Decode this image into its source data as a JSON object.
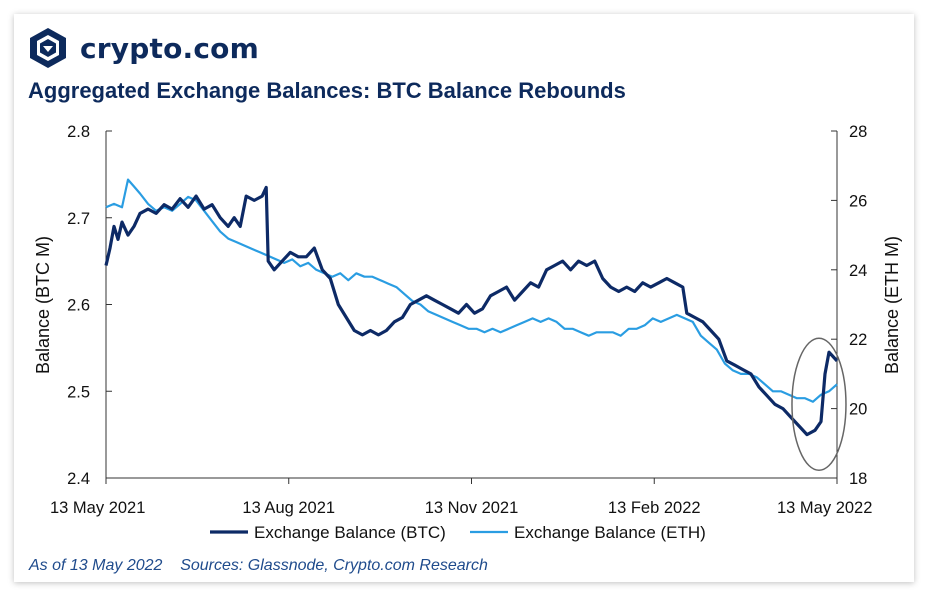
{
  "brand": {
    "name": "crypto.com",
    "logo_icon": "lion-shield-icon"
  },
  "footer": {
    "as_of": "As of 13 May 2022",
    "sources": "Sources: Glassnode, Crypto.com Research"
  },
  "colors": {
    "btc": "#0d2a66",
    "eth": "#2a9de2",
    "title": "#0d2a5c",
    "highlight": "#666666"
  },
  "chart_data": {
    "type": "line",
    "title": "Aggregated Exchange Balances: BTC Balance Rebounds",
    "xlabel": "",
    "ylabel": "Balance (BTC M)",
    "y2label": "Balance (ETH M)",
    "x_range": [
      "2021-05-13",
      "2022-05-13"
    ],
    "x_ticks": [
      "13 May 2021",
      "13 Aug 2021",
      "13 Nov 2021",
      "13 Feb 2022",
      "13 May 2022"
    ],
    "ylim": [
      2.4,
      2.8
    ],
    "y_ticks": [
      "2.4",
      "2.5",
      "2.6",
      "2.7",
      "2.8"
    ],
    "y2lim": [
      18,
      28
    ],
    "y2_ticks": [
      "18",
      "20",
      "22",
      "24",
      "26",
      "28"
    ],
    "grid": false,
    "legend": "bottom",
    "series": [
      {
        "name": "Exchange Balance (BTC)",
        "axis": "left",
        "points": [
          [
            "2021-05-13",
            2.645
          ],
          [
            "2021-05-15",
            2.665
          ],
          [
            "2021-05-17",
            2.69
          ],
          [
            "2021-05-19",
            2.675
          ],
          [
            "2021-05-21",
            2.695
          ],
          [
            "2021-05-24",
            2.68
          ],
          [
            "2021-05-27",
            2.69
          ],
          [
            "2021-05-30",
            2.705
          ],
          [
            "2021-06-03",
            2.71
          ],
          [
            "2021-06-07",
            2.705
          ],
          [
            "2021-06-11",
            2.715
          ],
          [
            "2021-06-15",
            2.71
          ],
          [
            "2021-06-19",
            2.722
          ],
          [
            "2021-06-23",
            2.712
          ],
          [
            "2021-06-27",
            2.725
          ],
          [
            "2021-07-01",
            2.71
          ],
          [
            "2021-07-05",
            2.715
          ],
          [
            "2021-07-09",
            2.7
          ],
          [
            "2021-07-13",
            2.69
          ],
          [
            "2021-07-16",
            2.7
          ],
          [
            "2021-07-19",
            2.69
          ],
          [
            "2021-07-22",
            2.725
          ],
          [
            "2021-07-26",
            2.72
          ],
          [
            "2021-07-30",
            2.725
          ],
          [
            "2021-08-01",
            2.735
          ],
          [
            "2021-08-02",
            2.65
          ],
          [
            "2021-08-05",
            2.64
          ],
          [
            "2021-08-09",
            2.65
          ],
          [
            "2021-08-13",
            2.66
          ],
          [
            "2021-08-17",
            2.655
          ],
          [
            "2021-08-21",
            2.655
          ],
          [
            "2021-08-25",
            2.665
          ],
          [
            "2021-08-29",
            2.64
          ],
          [
            "2021-09-02",
            2.63
          ],
          [
            "2021-09-06",
            2.6
          ],
          [
            "2021-09-10",
            2.585
          ],
          [
            "2021-09-14",
            2.57
          ],
          [
            "2021-09-18",
            2.565
          ],
          [
            "2021-09-22",
            2.57
          ],
          [
            "2021-09-26",
            2.565
          ],
          [
            "2021-09-30",
            2.57
          ],
          [
            "2021-10-04",
            2.58
          ],
          [
            "2021-10-08",
            2.585
          ],
          [
            "2021-10-12",
            2.6
          ],
          [
            "2021-10-16",
            2.605
          ],
          [
            "2021-10-20",
            2.61
          ],
          [
            "2021-10-24",
            2.605
          ],
          [
            "2021-10-28",
            2.6
          ],
          [
            "2021-11-01",
            2.595
          ],
          [
            "2021-11-05",
            2.59
          ],
          [
            "2021-11-09",
            2.6
          ],
          [
            "2021-11-13",
            2.59
          ],
          [
            "2021-11-17",
            2.595
          ],
          [
            "2021-11-21",
            2.61
          ],
          [
            "2021-11-25",
            2.615
          ],
          [
            "2021-11-29",
            2.62
          ],
          [
            "2021-12-03",
            2.605
          ],
          [
            "2021-12-07",
            2.615
          ],
          [
            "2021-12-11",
            2.625
          ],
          [
            "2021-12-15",
            2.62
          ],
          [
            "2021-12-19",
            2.64
          ],
          [
            "2021-12-23",
            2.645
          ],
          [
            "2021-12-27",
            2.65
          ],
          [
            "2021-12-31",
            2.64
          ],
          [
            "2022-01-04",
            2.65
          ],
          [
            "2022-01-08",
            2.645
          ],
          [
            "2022-01-12",
            2.65
          ],
          [
            "2022-01-16",
            2.63
          ],
          [
            "2022-01-20",
            2.62
          ],
          [
            "2022-01-24",
            2.615
          ],
          [
            "2022-01-28",
            2.62
          ],
          [
            "2022-02-01",
            2.615
          ],
          [
            "2022-02-05",
            2.625
          ],
          [
            "2022-02-09",
            2.62
          ],
          [
            "2022-02-13",
            2.625
          ],
          [
            "2022-02-17",
            2.63
          ],
          [
            "2022-02-21",
            2.625
          ],
          [
            "2022-02-25",
            2.62
          ],
          [
            "2022-02-27",
            2.59
          ],
          [
            "2022-03-03",
            2.585
          ],
          [
            "2022-03-07",
            2.58
          ],
          [
            "2022-03-11",
            2.57
          ],
          [
            "2022-03-15",
            2.56
          ],
          [
            "2022-03-19",
            2.535
          ],
          [
            "2022-03-23",
            2.53
          ],
          [
            "2022-03-27",
            2.525
          ],
          [
            "2022-03-31",
            2.52
          ],
          [
            "2022-04-04",
            2.505
          ],
          [
            "2022-04-08",
            2.495
          ],
          [
            "2022-04-12",
            2.485
          ],
          [
            "2022-04-16",
            2.48
          ],
          [
            "2022-04-20",
            2.47
          ],
          [
            "2022-04-24",
            2.46
          ],
          [
            "2022-04-28",
            2.45
          ],
          [
            "2022-05-02",
            2.455
          ],
          [
            "2022-05-05",
            2.465
          ],
          [
            "2022-05-07",
            2.52
          ],
          [
            "2022-05-09",
            2.545
          ],
          [
            "2022-05-11",
            2.54
          ],
          [
            "2022-05-13",
            2.535
          ]
        ]
      },
      {
        "name": "Exchange Balance (ETH)",
        "axis": "right",
        "points": [
          [
            "2021-05-13",
            25.8
          ],
          [
            "2021-05-17",
            25.9
          ],
          [
            "2021-05-21",
            25.8
          ],
          [
            "2021-05-24",
            26.6
          ],
          [
            "2021-05-27",
            26.4
          ],
          [
            "2021-05-30",
            26.2
          ],
          [
            "2021-06-03",
            25.9
          ],
          [
            "2021-06-07",
            25.7
          ],
          [
            "2021-06-11",
            25.8
          ],
          [
            "2021-06-15",
            25.7
          ],
          [
            "2021-06-19",
            25.9
          ],
          [
            "2021-06-23",
            26.1
          ],
          [
            "2021-06-27",
            26.0
          ],
          [
            "2021-07-01",
            25.7
          ],
          [
            "2021-07-05",
            25.4
          ],
          [
            "2021-07-09",
            25.1
          ],
          [
            "2021-07-13",
            24.9
          ],
          [
            "2021-07-17",
            24.8
          ],
          [
            "2021-07-21",
            24.7
          ],
          [
            "2021-07-25",
            24.6
          ],
          [
            "2021-07-29",
            24.5
          ],
          [
            "2021-08-02",
            24.4
          ],
          [
            "2021-08-06",
            24.3
          ],
          [
            "2021-08-10",
            24.2
          ],
          [
            "2021-08-14",
            24.3
          ],
          [
            "2021-08-18",
            24.1
          ],
          [
            "2021-08-22",
            24.2
          ],
          [
            "2021-08-26",
            24.0
          ],
          [
            "2021-08-30",
            23.9
          ],
          [
            "2021-09-03",
            23.8
          ],
          [
            "2021-09-07",
            23.9
          ],
          [
            "2021-09-11",
            23.7
          ],
          [
            "2021-09-15",
            23.9
          ],
          [
            "2021-09-19",
            23.8
          ],
          [
            "2021-09-23",
            23.8
          ],
          [
            "2021-09-27",
            23.7
          ],
          [
            "2021-10-01",
            23.6
          ],
          [
            "2021-10-05",
            23.5
          ],
          [
            "2021-10-09",
            23.3
          ],
          [
            "2021-10-13",
            23.1
          ],
          [
            "2021-10-17",
            23.0
          ],
          [
            "2021-10-21",
            22.8
          ],
          [
            "2021-10-25",
            22.7
          ],
          [
            "2021-10-29",
            22.6
          ],
          [
            "2021-11-02",
            22.5
          ],
          [
            "2021-11-06",
            22.4
          ],
          [
            "2021-11-10",
            22.3
          ],
          [
            "2021-11-14",
            22.3
          ],
          [
            "2021-11-18",
            22.2
          ],
          [
            "2021-11-22",
            22.3
          ],
          [
            "2021-11-26",
            22.2
          ],
          [
            "2021-11-30",
            22.3
          ],
          [
            "2021-12-04",
            22.4
          ],
          [
            "2021-12-08",
            22.5
          ],
          [
            "2021-12-12",
            22.6
          ],
          [
            "2021-12-16",
            22.5
          ],
          [
            "2021-12-20",
            22.6
          ],
          [
            "2021-12-24",
            22.5
          ],
          [
            "2021-12-28",
            22.3
          ],
          [
            "2022-01-01",
            22.3
          ],
          [
            "2022-01-05",
            22.2
          ],
          [
            "2022-01-09",
            22.1
          ],
          [
            "2022-01-13",
            22.2
          ],
          [
            "2022-01-17",
            22.2
          ],
          [
            "2022-01-21",
            22.2
          ],
          [
            "2022-01-25",
            22.1
          ],
          [
            "2022-01-29",
            22.3
          ],
          [
            "2022-02-02",
            22.3
          ],
          [
            "2022-02-06",
            22.4
          ],
          [
            "2022-02-10",
            22.6
          ],
          [
            "2022-02-14",
            22.5
          ],
          [
            "2022-02-18",
            22.6
          ],
          [
            "2022-02-22",
            22.7
          ],
          [
            "2022-02-26",
            22.6
          ],
          [
            "2022-03-02",
            22.5
          ],
          [
            "2022-03-06",
            22.1
          ],
          [
            "2022-03-10",
            21.9
          ],
          [
            "2022-03-14",
            21.7
          ],
          [
            "2022-03-18",
            21.3
          ],
          [
            "2022-03-22",
            21.1
          ],
          [
            "2022-03-26",
            21.0
          ],
          [
            "2022-03-30",
            21.0
          ],
          [
            "2022-04-03",
            20.9
          ],
          [
            "2022-04-07",
            20.7
          ],
          [
            "2022-04-11",
            20.5
          ],
          [
            "2022-04-15",
            20.5
          ],
          [
            "2022-04-19",
            20.4
          ],
          [
            "2022-04-23",
            20.3
          ],
          [
            "2022-04-27",
            20.3
          ],
          [
            "2022-05-01",
            20.2
          ],
          [
            "2022-05-05",
            20.4
          ],
          [
            "2022-05-09",
            20.5
          ],
          [
            "2022-05-11",
            20.6
          ],
          [
            "2022-05-13",
            20.7
          ]
        ]
      }
    ],
    "annotations": [
      {
        "type": "ellipse",
        "center": [
          "2022-05-04",
          2.485
        ],
        "note": ""
      }
    ]
  }
}
